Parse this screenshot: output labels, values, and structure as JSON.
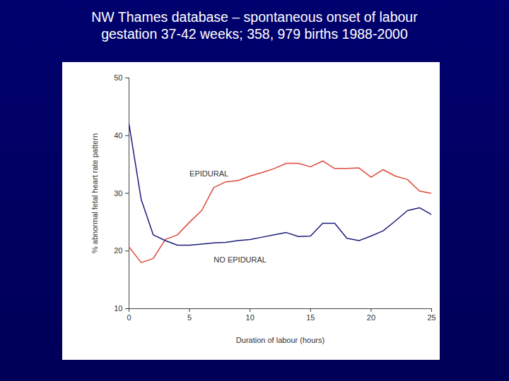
{
  "chart_data": {
    "type": "line",
    "title": "NW Thames database – spontaneous onset of labour",
    "subtitle": "gestation 37-42 weeks; 358, 979 births 1988-2000",
    "x_label": "Duration of labour (hours)",
    "y_label": "% abnormal fetal heart rate pattern",
    "x": [
      0,
      1,
      2,
      3,
      4,
      5,
      6,
      7,
      8,
      9,
      10,
      11,
      12,
      13,
      14,
      15,
      16,
      17,
      18,
      19,
      20,
      21,
      22,
      23,
      24,
      25
    ],
    "series": [
      {
        "name": "EPIDURAL",
        "color": "#e0463a",
        "values": [
          20.7,
          18.0,
          18.7,
          22.0,
          22.8,
          25.0,
          27.0,
          31.0,
          32.0,
          32.2,
          33.0,
          33.6,
          34.3,
          35.2,
          35.2,
          34.6,
          35.6,
          34.3,
          34.3,
          34.4,
          32.8,
          34.1,
          33.0,
          32.4,
          30.4,
          30.0
        ]
      },
      {
        "name": "NO EPIDURAL",
        "color": "#1c1c7a",
        "values": [
          42.0,
          29.0,
          22.8,
          21.8,
          21.0,
          21.0,
          21.2,
          21.4,
          21.5,
          21.8,
          22.0,
          22.4,
          22.8,
          23.2,
          22.5,
          22.6,
          24.8,
          24.8,
          22.2,
          21.8,
          22.6,
          23.5,
          25.2,
          27.0,
          27.5,
          26.3
        ]
      }
    ],
    "annotations": [
      {
        "text": "EPIDURAL",
        "x": 5,
        "y": 33.4
      },
      {
        "text": "NO EPIDURAL",
        "x": 7,
        "y": 18.4
      }
    ],
    "xlim": [
      0,
      25
    ],
    "xticks": [
      0,
      5,
      10,
      15,
      20,
      25
    ],
    "ylim": [
      10,
      50
    ],
    "yticks": [
      10,
      20,
      30,
      40,
      50
    ],
    "grid": false
  }
}
